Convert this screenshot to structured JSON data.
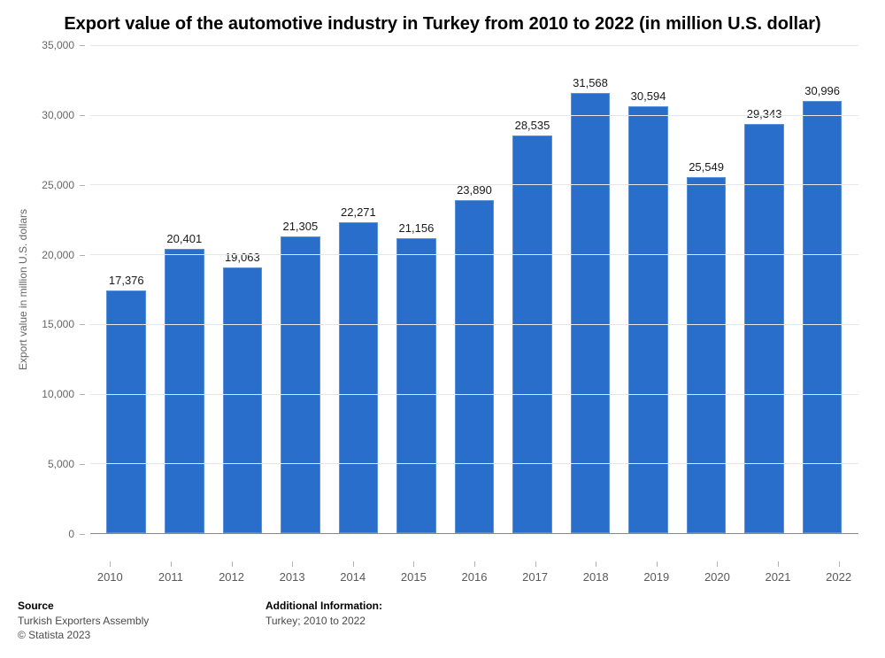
{
  "chart": {
    "type": "bar",
    "title": "Export value of the automotive industry in Turkey from 2010 to 2022 (in million U.S. dollar)",
    "title_fontsize": 20,
    "categories": [
      "2010",
      "2011",
      "2012",
      "2013",
      "2014",
      "2015",
      "2016",
      "2017",
      "2018",
      "2019",
      "2020",
      "2021",
      "2022"
    ],
    "values": [
      17376,
      20401,
      19063,
      21305,
      22271,
      21156,
      23890,
      28535,
      31568,
      30594,
      25549,
      29343,
      30996
    ],
    "value_labels": [
      "17,376",
      "20,401",
      "19,063",
      "21,305",
      "22,271",
      "21,156",
      "23,890",
      "28,535",
      "31,568",
      "30,594",
      "25,549",
      "29,343",
      "30,996"
    ],
    "bar_color": "#2a6ecb",
    "bar_border_color": "#5b8fd6",
    "y_axis_label": "Export value in million U.S. dollars",
    "ylim_min": 0,
    "ylim_max": 35000,
    "ytick_step": 5000,
    "ytick_labels": [
      "0",
      "5,000",
      "10,000",
      "15,000",
      "20,000",
      "25,000",
      "30,000",
      "35,000"
    ],
    "grid_color": "#e6e6e6",
    "axis_line_color": "#888888",
    "tick_label_color": "#666666",
    "value_label_color": "#1a1a1a",
    "background_color": "#ffffff",
    "axis_label_fontsize": 12,
    "tick_fontsize": 12,
    "value_fontsize": 13,
    "bar_width": 0.68
  },
  "footer": {
    "source_heading": "Source",
    "source_line1": "Turkish Exporters Assembly",
    "source_line2": "© Statista 2023",
    "info_heading": "Additional Information:",
    "info_line": "Turkey; 2010 to 2022"
  }
}
